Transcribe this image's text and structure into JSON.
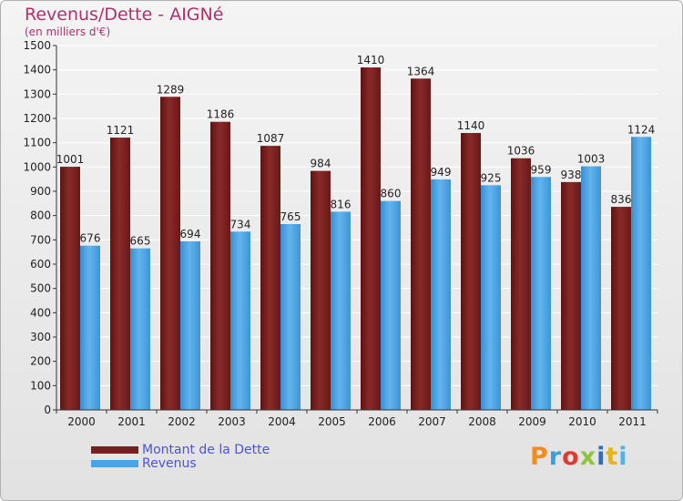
{
  "title": "Revenus/Dette - AIGNé",
  "subtitle": "(en milliers d'€)",
  "logo_text": "Proxiti",
  "logo_colors": [
    "#f28c1e",
    "#3aa0d8",
    "#e03a30",
    "#8cc63f",
    "#2f6fb8",
    "#e8b21c",
    "#4db6e6"
  ],
  "chart_data": {
    "type": "bar",
    "categories": [
      "2000",
      "2001",
      "2002",
      "2003",
      "2004",
      "2005",
      "2006",
      "2007",
      "2008",
      "2009",
      "2010",
      "2011"
    ],
    "series": [
      {
        "name": "Montant de la Dette",
        "color": "#7a1f1f",
        "values": [
          1001,
          1121,
          1289,
          1186,
          1087,
          984,
          1410,
          1364,
          1140,
          1036,
          938,
          836
        ]
      },
      {
        "name": "Revenus",
        "color": "#4aa3e6",
        "values": [
          676,
          665,
          694,
          734,
          765,
          816,
          860,
          949,
          925,
          959,
          1003,
          1124
        ]
      }
    ],
    "ylim": [
      0,
      1500
    ],
    "yticks": [
      0,
      100,
      200,
      300,
      400,
      500,
      600,
      700,
      800,
      900,
      1000,
      1100,
      1200,
      1300,
      1400,
      1500
    ],
    "grid": true,
    "legend_position": "bottom-left"
  }
}
